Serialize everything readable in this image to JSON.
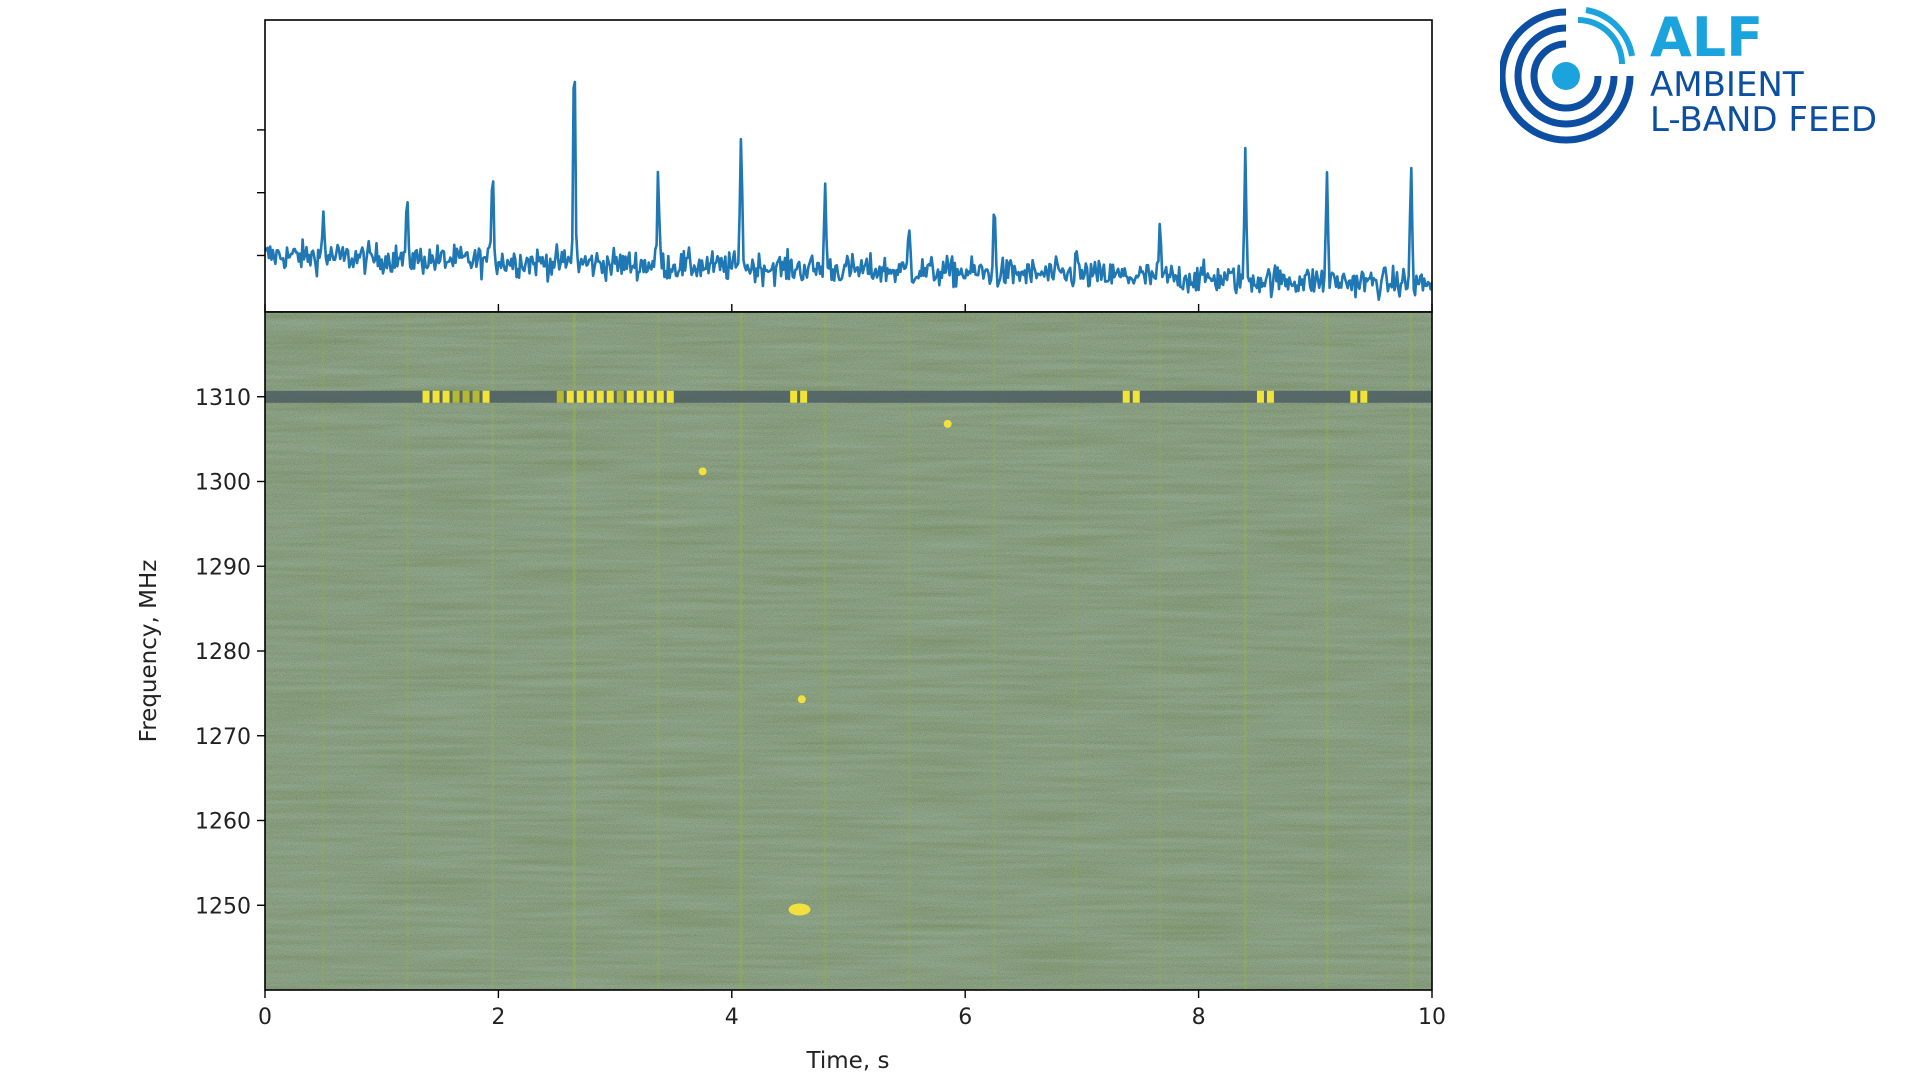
{
  "logo": {
    "title": "ALF",
    "line1": "AMBIENT",
    "line2": "L-BAND FEED",
    "colors": {
      "light": "#1aa3dd",
      "dark": "#0b4ea2"
    }
  },
  "chart_data": [
    {
      "type": "line",
      "panel": "profile",
      "xlim": [
        0,
        10
      ],
      "ylim": [
        -1.8,
        7.5
      ],
      "yticks": [
        0,
        2,
        4
      ],
      "ytick_labels_visible": false,
      "line_color": "#1f77b4",
      "baseline": [
        [
          0,
          0.0
        ],
        [
          10,
          -0.9
        ]
      ],
      "pulses": [
        {
          "t": 0.5,
          "h": 1.4
        },
        {
          "t": 1.22,
          "h": 1.7
        },
        {
          "t": 1.95,
          "h": 3.3
        },
        {
          "t": 2.65,
          "h": 6.9
        },
        {
          "t": 3.37,
          "h": 3.0
        },
        {
          "t": 4.08,
          "h": 4.6
        },
        {
          "t": 4.8,
          "h": 2.6
        },
        {
          "t": 5.52,
          "h": 1.6
        },
        {
          "t": 6.25,
          "h": 2.0
        },
        {
          "t": 6.95,
          "h": 0.9
        },
        {
          "t": 7.67,
          "h": 1.5
        },
        {
          "t": 8.4,
          "h": 3.8
        },
        {
          "t": 9.1,
          "h": 3.5
        },
        {
          "t": 9.82,
          "h": 3.6
        }
      ]
    },
    {
      "type": "heatmap",
      "panel": "dynamic-spectrum",
      "xlim": [
        0,
        10
      ],
      "ylim": [
        1240,
        1320
      ],
      "xlabel": "Time, s",
      "ylabel": "Frequency, MHz",
      "xticks": [
        0,
        2,
        4,
        6,
        8,
        10
      ],
      "xtick_labels": [
        "0",
        "2",
        "4",
        "6",
        "8",
        "10"
      ],
      "yticks": [
        1250,
        1260,
        1270,
        1280,
        1290,
        1300,
        1310
      ],
      "ytick_labels": [
        "1250",
        "1260",
        "1270",
        "1280",
        "1290",
        "1300",
        "1310"
      ],
      "colormap": "viridis",
      "background_color": "#56743a",
      "rfi_band_mhz": 1310,
      "bright_segments": [
        [
          1.35,
          1.9
        ],
        [
          2.5,
          3.5
        ],
        [
          4.5,
          4.65
        ],
        [
          7.35,
          7.5
        ],
        [
          8.5,
          8.65
        ],
        [
          9.3,
          9.4
        ]
      ],
      "bright_spots": [
        {
          "t": 4.58,
          "f": 1249.5
        },
        {
          "t": 4.6,
          "f": 1274.3
        },
        {
          "t": 5.85,
          "f": 1306.8
        },
        {
          "t": 3.75,
          "f": 1301.2
        }
      ]
    }
  ]
}
